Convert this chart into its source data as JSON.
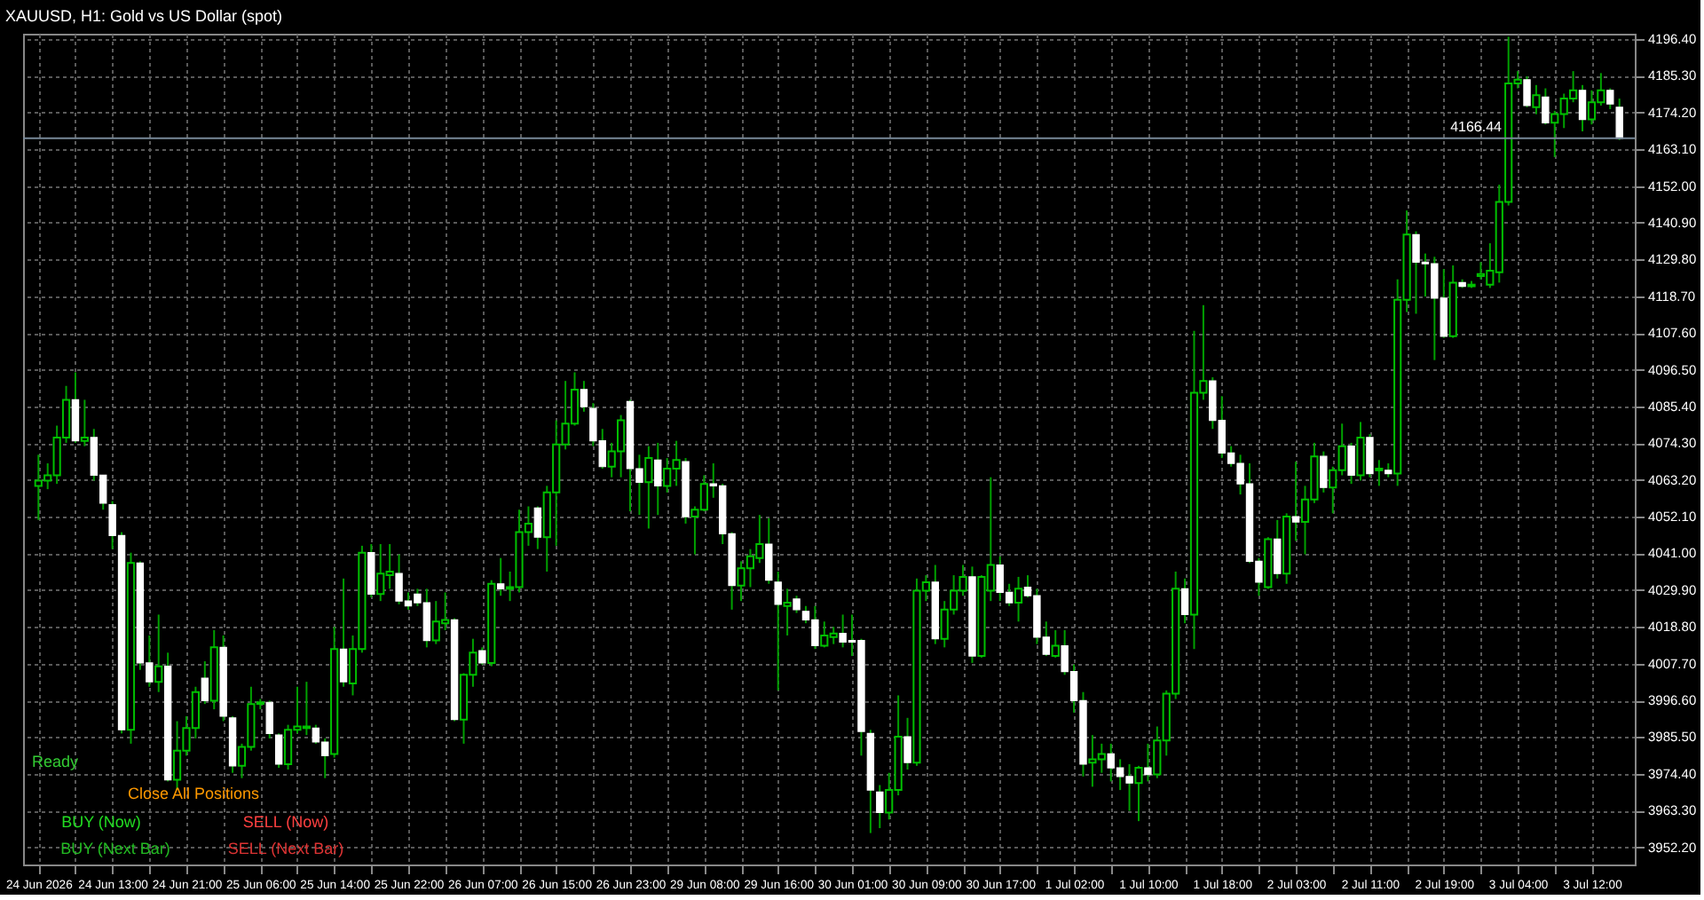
{
  "chart_data": {
    "type": "candlestick",
    "title": "XAUUSD, H1:  Gold vs US Dollar (spot)",
    "categories": [
      "24 Jun 2026",
      null,
      null,
      null,
      null,
      null,
      null,
      null,
      "24 Jun 13:00",
      null,
      null,
      null,
      null,
      null,
      null,
      null,
      "24 Jun 21:00",
      null,
      null,
      null,
      null,
      null,
      null,
      null,
      "25 Jun 06:00",
      null,
      null,
      null,
      null,
      null,
      null,
      null,
      "25 Jun 14:00",
      null,
      null,
      null,
      null,
      null,
      null,
      null,
      "25 Jun 22:00",
      null,
      null,
      null,
      null,
      null,
      null,
      null,
      "26 Jun 07:00",
      null,
      null,
      null,
      null,
      null,
      null,
      null,
      "26 Jun 15:00",
      null,
      null,
      null,
      null,
      null,
      null,
      null,
      "26 Jun 23:00",
      null,
      null,
      null,
      null,
      null,
      null,
      null,
      "29 Jun 08:00",
      null,
      null,
      null,
      null,
      null,
      null,
      null,
      "29 Jun 16:00",
      null,
      null,
      null,
      null,
      null,
      null,
      null,
      "30 Jun 01:00",
      null,
      null,
      null,
      null,
      null,
      null,
      null,
      "30 Jun 09:00",
      null,
      null,
      null,
      null,
      null,
      null,
      null,
      "30 Jun 17:00",
      null,
      null,
      null,
      null,
      null,
      null,
      null,
      "1 Jul 02:00",
      null,
      null,
      null,
      null,
      null,
      null,
      null,
      "1 Jul 10:00",
      null,
      null,
      null,
      null,
      null,
      null,
      null,
      "1 Jul 18:00",
      null,
      null,
      null,
      null,
      null,
      null,
      null,
      "2 Jul 03:00",
      null,
      null,
      null,
      null,
      null,
      null,
      null,
      "2 Jul 11:00",
      null,
      null,
      null,
      null,
      null,
      null,
      null,
      "2 Jul 19:00",
      null,
      null,
      null,
      null,
      null,
      null,
      null,
      "3 Jul 04:00",
      null,
      null,
      null,
      null,
      null,
      null,
      null,
      "3 Jul 12:00",
      null,
      null,
      null
    ],
    "ohlc": [
      [
        4061.4,
        4070.8,
        4051.1,
        4063.0
      ],
      [
        4063.0,
        4068.2,
        4060.4,
        4064.6
      ],
      [
        4064.6,
        4079.6,
        4062.0,
        4076.0
      ],
      [
        4076.0,
        4091.6,
        4074.4,
        4087.4
      ],
      [
        4087.4,
        4095.7,
        4074.4,
        4075.0
      ],
      [
        4075.0,
        4087.4,
        4073.4,
        4076.0
      ],
      [
        4076.0,
        4078.6,
        4063.0,
        4064.6
      ],
      [
        4064.6,
        4064.6,
        4054.2,
        4056.2
      ],
      [
        4055.7,
        4056.8,
        4042.3,
        4046.4
      ],
      [
        4046.4,
        4047.4,
        3986.6,
        3987.7
      ],
      [
        3987.7,
        4041.2,
        3983.5,
        4038.1
      ],
      [
        4038.1,
        4038.6,
        4005.8,
        4007.9
      ],
      [
        4007.9,
        4016.2,
        4000.7,
        4002.2
      ],
      [
        4002.2,
        4022.5,
        3999.1,
        4006.9
      ],
      [
        4006.9,
        4011.0,
        3972.1,
        3972.6
      ],
      [
        3972.6,
        3990.3,
        3969.5,
        3981.4
      ],
      [
        3981.4,
        3991.8,
        3979.9,
        3988.2
      ],
      [
        3988.2,
        4000.7,
        3985.1,
        3999.1
      ],
      [
        4003.3,
        4008.4,
        3995.5,
        3996.5
      ],
      [
        3996.5,
        4017.8,
        3993.9,
        4012.6
      ],
      [
        4012.6,
        4016.2,
        3990.3,
        3991.8
      ],
      [
        3991.3,
        3991.8,
        3974.7,
        3976.8
      ],
      [
        3976.8,
        3983.5,
        3973.1,
        3982.5
      ],
      [
        3982.5,
        4000.7,
        3981.4,
        3995.5
      ],
      [
        3995.5,
        3997.0,
        3993.9,
        3996.0
      ],
      [
        3996.0,
        3996.5,
        3985.1,
        3986.6
      ],
      [
        3986.1,
        3986.6,
        3976.2,
        3977.3
      ],
      [
        3977.3,
        3989.2,
        3975.7,
        3987.7
      ],
      [
        3987.7,
        4000.7,
        3986.6,
        3988.7
      ],
      [
        3988.2,
        4002.2,
        3986.1,
        3988.7
      ],
      [
        3988.2,
        3989.2,
        3983.5,
        3984.0
      ],
      [
        3984.0,
        3985.1,
        3973.1,
        3979.9
      ],
      [
        3980.4,
        4018.8,
        3979.3,
        4012.1
      ],
      [
        4012.1,
        4033.4,
        4000.7,
        4002.2
      ],
      [
        4001.7,
        4016.2,
        3998.1,
        4012.1
      ],
      [
        4012.1,
        4043.3,
        4011.0,
        4041.2
      ],
      [
        4041.2,
        4043.8,
        4027.7,
        4028.7
      ],
      [
        4028.7,
        4043.8,
        4026.6,
        4034.9
      ],
      [
        4034.4,
        4043.8,
        4030.3,
        4035.5
      ],
      [
        4034.9,
        4040.7,
        4025.6,
        4026.6
      ],
      [
        4026.6,
        4029.2,
        4024.0,
        4025.1
      ],
      [
        4028.7,
        4030.3,
        4025.1,
        4026.1
      ],
      [
        4026.1,
        4030.3,
        4012.6,
        4014.7
      ],
      [
        4014.7,
        4026.6,
        4013.6,
        4020.4
      ],
      [
        4019.9,
        4029.2,
        4017.8,
        4020.9
      ],
      [
        4020.9,
        4021.4,
        3990.3,
        3990.8
      ],
      [
        3990.8,
        4004.8,
        3983.5,
        4004.3
      ],
      [
        4004.3,
        4015.2,
        4000.7,
        4011.0
      ],
      [
        4011.6,
        4012.6,
        4007.4,
        4007.9
      ],
      [
        4007.9,
        4032.9,
        4006.9,
        4031.8
      ],
      [
        4031.8,
        4039.6,
        4028.2,
        4030.3
      ],
      [
        4030.3,
        4035.5,
        4026.6,
        4030.8
      ],
      [
        4030.8,
        4054.2,
        4029.2,
        4047.4
      ],
      [
        4047.4,
        4055.2,
        4043.3,
        4050.0
      ],
      [
        4054.7,
        4055.2,
        4042.3,
        4045.9
      ],
      [
        4045.9,
        4061.4,
        4035.5,
        4059.4
      ],
      [
        4059.4,
        4081.2,
        4043.3,
        4073.9
      ],
      [
        4073.9,
        4093.1,
        4072.4,
        4080.2
      ],
      [
        4080.2,
        4095.7,
        4079.6,
        4090.5
      ],
      [
        4090.5,
        4093.1,
        4083.8,
        4085.3
      ],
      [
        4084.8,
        4086.4,
        4073.4,
        4075.0
      ],
      [
        4075.0,
        4078.6,
        4066.6,
        4067.2
      ],
      [
        4067.2,
        4074.4,
        4064.0,
        4071.8
      ],
      [
        4071.8,
        4082.8,
        4064.0,
        4081.2
      ],
      [
        4086.9,
        4087.4,
        4053.7,
        4066.6
      ],
      [
        4066.6,
        4070.8,
        4052.6,
        4062.5
      ],
      [
        4062.5,
        4073.4,
        4048.5,
        4069.8
      ],
      [
        4069.2,
        4074.4,
        4052.6,
        4061.4
      ],
      [
        4061.4,
        4069.8,
        4059.4,
        4066.6
      ],
      [
        4066.6,
        4075.0,
        4061.4,
        4069.2
      ],
      [
        4068.7,
        4069.8,
        4050.0,
        4052.1
      ],
      [
        4052.1,
        4055.2,
        4040.7,
        4054.2
      ],
      [
        4054.2,
        4064.6,
        4053.7,
        4062.0
      ],
      [
        4062.0,
        4068.2,
        4057.8,
        4061.4
      ],
      [
        4061.4,
        4062.0,
        4043.8,
        4046.9
      ],
      [
        4046.9,
        4047.4,
        4024.0,
        4031.3
      ],
      [
        4031.3,
        4038.6,
        4026.6,
        4036.5
      ],
      [
        4036.5,
        4042.3,
        4030.8,
        4040.1
      ],
      [
        4039.6,
        4052.6,
        4038.1,
        4043.8
      ],
      [
        4043.8,
        4051.6,
        4031.8,
        4032.9
      ],
      [
        4032.3,
        4035.5,
        3999.6,
        4025.6
      ],
      [
        4025.1,
        4030.3,
        4016.2,
        4026.1
      ],
      [
        4027.2,
        4028.2,
        4023.0,
        4024.0
      ],
      [
        4023.5,
        4025.1,
        4019.9,
        4020.9
      ],
      [
        4020.9,
        4025.1,
        4012.1,
        4013.1
      ],
      [
        4013.1,
        4020.4,
        4012.6,
        4016.2
      ],
      [
        4015.7,
        4018.8,
        4013.6,
        4016.8
      ],
      [
        4016.8,
        4022.5,
        4012.6,
        4014.2
      ],
      [
        4014.7,
        4022.5,
        4010.0,
        4014.2
      ],
      [
        4014.7,
        4015.2,
        3979.9,
        3987.2
      ],
      [
        3986.6,
        3987.7,
        3956.5,
        3969.5
      ],
      [
        3968.9,
        3971.0,
        3958.0,
        3962.7
      ],
      [
        3962.7,
        3974.7,
        3960.6,
        3969.5
      ],
      [
        3969.5,
        3998.1,
        3967.9,
        3985.6
      ],
      [
        3985.6,
        3991.3,
        3975.7,
        3977.8
      ],
      [
        3977.8,
        4033.4,
        3976.8,
        4029.7
      ],
      [
        4029.7,
        4034.4,
        4026.6,
        4032.3
      ],
      [
        4032.3,
        4037.5,
        4013.6,
        4015.2
      ],
      [
        4015.2,
        4026.6,
        4012.6,
        4024.0
      ],
      [
        4024.0,
        4034.4,
        4022.5,
        4029.7
      ],
      [
        4029.7,
        4037.5,
        4028.2,
        4033.9
      ],
      [
        4033.9,
        4037.0,
        4007.9,
        4010.0
      ],
      [
        4010.0,
        4034.4,
        4009.5,
        4033.9
      ],
      [
        4029.7,
        4064.0,
        4026.6,
        4037.5
      ],
      [
        4037.5,
        4040.1,
        4026.6,
        4029.2
      ],
      [
        4029.2,
        4031.8,
        4025.1,
        4026.1
      ],
      [
        4026.1,
        4033.9,
        4020.4,
        4030.3
      ],
      [
        4030.8,
        4034.4,
        4027.7,
        4028.2
      ],
      [
        4028.2,
        4030.3,
        4013.6,
        4015.7
      ],
      [
        4015.7,
        4020.4,
        4010.0,
        4010.5
      ],
      [
        4010.0,
        4017.8,
        4009.5,
        4013.1
      ],
      [
        4013.1,
        4017.8,
        4004.3,
        4005.3
      ],
      [
        4005.3,
        4007.4,
        3992.9,
        3996.5
      ],
      [
        3996.5,
        3999.1,
        3973.6,
        3977.3
      ],
      [
        3977.8,
        3986.1,
        3970.5,
        3978.8
      ],
      [
        3978.8,
        3983.5,
        3974.7,
        3980.4
      ],
      [
        3980.4,
        3983.5,
        3972.1,
        3976.2
      ],
      [
        3976.2,
        3978.8,
        3969.5,
        3973.6
      ],
      [
        3973.6,
        3977.3,
        3963.2,
        3971.6
      ],
      [
        3971.6,
        3976.8,
        3960.1,
        3976.2
      ],
      [
        3976.2,
        3983.5,
        3972.1,
        3974.2
      ],
      [
        3974.2,
        3988.7,
        3973.1,
        3984.5
      ],
      [
        3984.5,
        3999.6,
        3979.9,
        3998.6
      ],
      [
        3998.6,
        4035.5,
        3997.0,
        4030.3
      ],
      [
        4030.3,
        4033.4,
        4019.9,
        4022.5
      ],
      [
        4022.5,
        4108.2,
        4012.1,
        4089.5
      ],
      [
        4089.5,
        4116.0,
        4087.4,
        4093.1
      ],
      [
        4093.1,
        4094.2,
        4078.6,
        4081.2
      ],
      [
        4081.2,
        4088.5,
        4069.8,
        4071.3
      ],
      [
        4071.3,
        4073.4,
        4067.2,
        4068.2
      ],
      [
        4068.2,
        4070.8,
        4058.8,
        4062.0
      ],
      [
        4062.0,
        4068.2,
        4038.1,
        4038.6
      ],
      [
        4038.6,
        4039.6,
        4028.2,
        4032.3
      ],
      [
        4030.8,
        4045.9,
        4030.3,
        4045.3
      ],
      [
        4045.3,
        4051.1,
        4033.4,
        4034.9
      ],
      [
        4034.9,
        4053.1,
        4031.8,
        4052.1
      ],
      [
        4052.1,
        4068.7,
        4044.8,
        4050.5
      ],
      [
        4050.5,
        4061.4,
        4040.7,
        4057.3
      ],
      [
        4057.3,
        4074.4,
        4056.2,
        4070.3
      ],
      [
        4070.3,
        4071.8,
        4059.4,
        4060.9
      ],
      [
        4060.9,
        4067.2,
        4053.1,
        4066.1
      ],
      [
        4066.1,
        4080.2,
        4064.6,
        4073.4
      ],
      [
        4073.4,
        4074.4,
        4062.0,
        4064.6
      ],
      [
        4064.6,
        4080.7,
        4063.0,
        4076.0
      ],
      [
        4076.0,
        4077.0,
        4064.0,
        4065.1
      ],
      [
        4066.1,
        4069.2,
        4061.4,
        4066.6
      ],
      [
        4066.1,
        4068.2,
        4064.0,
        4065.1
      ],
      [
        4065.1,
        4123.8,
        4061.4,
        4117.6
      ],
      [
        4117.6,
        4144.6,
        4113.9,
        4137.3
      ],
      [
        4137.3,
        4138.3,
        4113.4,
        4129.0
      ],
      [
        4129.0,
        4131.6,
        4118.6,
        4128.5
      ],
      [
        4128.5,
        4130.6,
        4099.4,
        4118.1
      ],
      [
        4118.1,
        4126.9,
        4106.1,
        4106.6
      ],
      [
        4106.6,
        4128.0,
        4106.1,
        4122.8
      ],
      [
        4122.8,
        4123.8,
        4121.2,
        4121.7
      ],
      [
        4121.7,
        4123.3,
        4121.2,
        4122.2
      ],
      [
        4124.8,
        4129.0,
        4123.8,
        4125.4
      ],
      [
        4122.2,
        4134.7,
        4121.2,
        4126.4
      ],
      [
        4125.9,
        4152.4,
        4122.8,
        4147.2
      ],
      [
        4147.2,
        4197.1,
        4146.1,
        4183.0
      ],
      [
        4183.0,
        4186.7,
        4181.5,
        4184.1
      ],
      [
        4184.1,
        4185.1,
        4175.8,
        4176.3
      ],
      [
        4175.8,
        4182.5,
        4173.7,
        4179.4
      ],
      [
        4178.9,
        4181.5,
        4170.6,
        4171.1
      ],
      [
        4171.1,
        4174.7,
        4160.7,
        4173.7
      ],
      [
        4173.7,
        4179.9,
        4169.5,
        4178.4
      ],
      [
        4178.4,
        4186.7,
        4177.3,
        4180.9
      ],
      [
        4180.9,
        4182.5,
        4168.5,
        4172.1
      ],
      [
        4172.1,
        4180.9,
        4170.6,
        4177.3
      ],
      [
        4177.3,
        4186.1,
        4176.3,
        4180.9
      ],
      [
        4180.9,
        4181.5,
        4175.2,
        4176.8
      ],
      [
        4175.8,
        4178.4,
        4165.9,
        4166.4
      ]
    ],
    "ylim": [
      3947.0,
      4198.0
    ],
    "yticks": [
      {
        "value": 3952.2,
        "label": "3952.20"
      },
      {
        "value": 3963.3,
        "label": "3963.30"
      },
      {
        "value": 3974.4,
        "label": "3974.40"
      },
      {
        "value": 3985.5,
        "label": "3985.50"
      },
      {
        "value": 3996.6,
        "label": "3996.60"
      },
      {
        "value": 4007.7,
        "label": "4007.70"
      },
      {
        "value": 4018.8,
        "label": "4018.80"
      },
      {
        "value": 4029.9,
        "label": "4029.90"
      },
      {
        "value": 4041.0,
        "label": "4041.00"
      },
      {
        "value": 4052.1,
        "label": "4052.10"
      },
      {
        "value": 4063.2,
        "label": "4063.20"
      },
      {
        "value": 4074.3,
        "label": "4074.30"
      },
      {
        "value": 4085.4,
        "label": "4085.40"
      },
      {
        "value": 4096.5,
        "label": "4096.50"
      },
      {
        "value": 4107.6,
        "label": "4107.60"
      },
      {
        "value": 4118.7,
        "label": "4118.70"
      },
      {
        "value": 4129.8,
        "label": "4129.80"
      },
      {
        "value": 4140.9,
        "label": "4140.90"
      },
      {
        "value": 4152.0,
        "label": "4152.00"
      },
      {
        "value": 4163.1,
        "label": "4163.10"
      },
      {
        "value": 4174.2,
        "label": "4174.20"
      },
      {
        "value": 4185.3,
        "label": "4185.30"
      },
      {
        "value": 4196.4,
        "label": "4196.40"
      }
    ],
    "grid": true,
    "ref_lines": [
      {
        "axis": "y",
        "value": 4166.44,
        "label": "4166.44",
        "color": "#778899"
      }
    ],
    "annotations": [
      "Ready",
      "Close All Positions",
      "BUY (Now)",
      "SELL (Now)",
      "BUY (Next Bar)",
      "SELL (Next Bar)"
    ]
  }
}
